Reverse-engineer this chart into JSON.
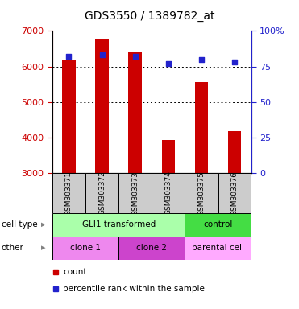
{
  "title": "GDS3550 / 1389782_at",
  "samples": [
    "GSM303371",
    "GSM303372",
    "GSM303373",
    "GSM303374",
    "GSM303375",
    "GSM303376"
  ],
  "counts": [
    6180,
    6750,
    6400,
    3920,
    5570,
    4170
  ],
  "percentile_ranks": [
    82,
    83,
    82,
    77,
    80,
    78
  ],
  "ylim_left": [
    3000,
    7000
  ],
  "ylim_right": [
    0,
    100
  ],
  "yticks_left": [
    3000,
    4000,
    5000,
    6000,
    7000
  ],
  "yticks_right": [
    0,
    25,
    50,
    75,
    100
  ],
  "ytick_right_labels": [
    "0",
    "25",
    "50",
    "75",
    "100%"
  ],
  "bar_color": "#cc0000",
  "dot_color": "#2222cc",
  "bar_bottom": 3000,
  "cell_type_groups": [
    {
      "label": "GLI1 transformed",
      "start": 0,
      "end": 4,
      "color": "#aaffaa"
    },
    {
      "label": "control",
      "start": 4,
      "end": 6,
      "color": "#44dd44"
    }
  ],
  "other_groups": [
    {
      "label": "clone 1",
      "start": 0,
      "end": 2,
      "color": "#ee88ee"
    },
    {
      "label": "clone 2",
      "start": 2,
      "end": 4,
      "color": "#cc44cc"
    },
    {
      "label": "parental cell",
      "start": 4,
      "end": 6,
      "color": "#ffaaff"
    }
  ],
  "sample_box_color": "#cccccc",
  "legend_items": [
    {
      "color": "#cc0000",
      "label": "count"
    },
    {
      "color": "#2222cc",
      "label": "percentile rank within the sample"
    }
  ]
}
